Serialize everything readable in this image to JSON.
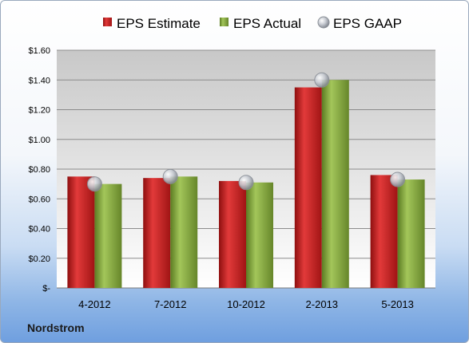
{
  "company": "Nordstrom",
  "colors": {
    "estimate": "#c41e1e",
    "actual": "#7fa33a",
    "gaap": "#b8bcc4",
    "plot_bg_top": "#c8c8c8",
    "plot_bg_bottom": "#ffffff"
  },
  "chart_data": {
    "type": "bar",
    "title": "",
    "xlabel": "",
    "ylabel": "",
    "categories": [
      "4-2012",
      "7-2012",
      "10-2012",
      "2-2013",
      "5-2013"
    ],
    "series": [
      {
        "name": "EPS Estimate",
        "kind": "bar",
        "values": [
          0.75,
          0.74,
          0.72,
          1.35,
          0.76
        ]
      },
      {
        "name": "EPS Actual",
        "kind": "bar",
        "values": [
          0.7,
          0.75,
          0.71,
          1.4,
          0.73
        ]
      },
      {
        "name": "EPS GAAP",
        "kind": "marker",
        "values": [
          0.7,
          0.75,
          0.71,
          1.4,
          0.73
        ]
      }
    ],
    "ylim": [
      0,
      1.6
    ],
    "yticks": [
      0,
      0.2,
      0.4,
      0.6,
      0.8,
      1.0,
      1.2,
      1.4,
      1.6
    ],
    "ytick_labels": [
      "$-",
      "$0.20",
      "$0.40",
      "$0.60",
      "$0.80",
      "$1.00",
      "$1.20",
      "$1.40",
      "$1.60"
    ],
    "grid": true,
    "legend_position": "top"
  }
}
